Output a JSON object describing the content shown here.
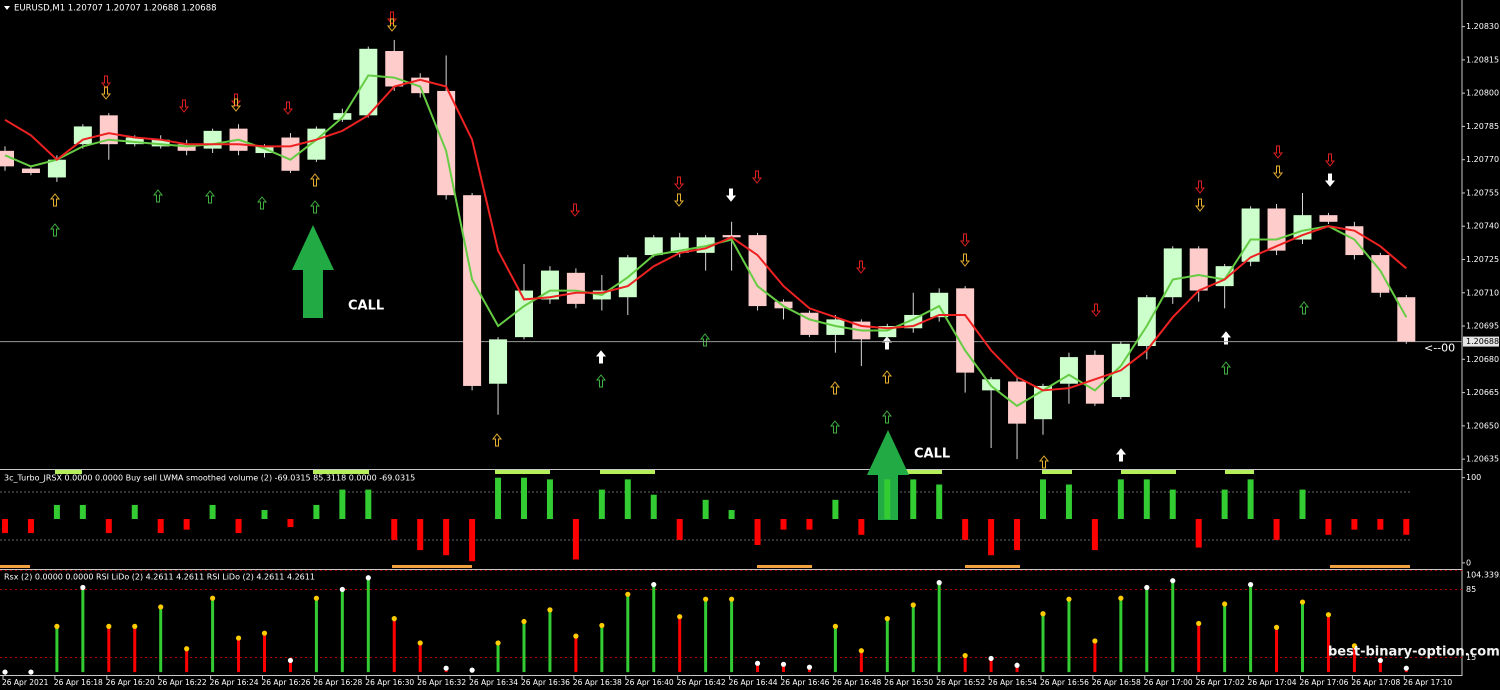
{
  "chart_data": [
    {
      "type": "candlestick",
      "title": "EURUSD,M1  1.20707 1.20707 1.20688 1.20688",
      "categories": [
        "26 Apr 2021",
        null,
        "26 Apr 16:18",
        null,
        "26 Apr 16:20",
        null,
        "26 Apr 16:22",
        null,
        "26 Apr 16:24",
        null,
        "26 Apr 16:26",
        null,
        "26 Apr 16:28",
        null,
        "26 Apr 16:30",
        null,
        "26 Apr 16:32",
        null,
        "26 Apr 16:34",
        null,
        "26 Apr 16:36",
        null,
        "26 Apr 16:38",
        null,
        "26 Apr 16:40",
        null,
        "26 Apr 16:42",
        null,
        "26 Apr 16:44",
        null,
        "26 Apr 16:46",
        null,
        "26 Apr 16:48",
        null,
        "26 Apr 16:50",
        null,
        "26 Apr 16:52",
        null,
        "26 Apr 16:54",
        null,
        "26 Apr 16:56",
        null,
        "26 Apr 16:58",
        null,
        "26 Apr 17:00",
        null,
        "26 Apr 17:02",
        null,
        "26 Apr 17:04",
        null,
        "26 Apr 17:06",
        null,
        "26 Apr 17:08",
        null,
        "26 Apr 17:10"
      ],
      "open": [
        1.20774,
        1.20766,
        1.20762,
        1.20777,
        1.2079,
        1.20777,
        1.20776,
        1.20777,
        1.20775,
        1.20784,
        1.20773,
        1.2078,
        1.2077,
        1.20788,
        1.2079,
        1.20819,
        1.20807,
        1.20801,
        1.20754,
        1.20669,
        1.2069,
        1.20707,
        1.20719,
        1.20707,
        1.20708,
        1.20727,
        1.20728,
        1.20728,
        1.20736,
        1.20736,
        1.20706,
        1.20701,
        1.20691,
        1.20697,
        1.2069,
        1.20694,
        1.20699,
        1.20712,
        1.20666,
        1.2067,
        1.20653,
        1.20669,
        1.20682,
        1.20663,
        1.20686,
        1.20708,
        1.2073,
        1.20713,
        1.20724,
        1.20748,
        1.20734,
        1.20745,
        1.2074,
        1.20727,
        1.20708
      ],
      "high": [
        1.20776,
        1.20767,
        1.20772,
        1.20786,
        1.20791,
        1.20781,
        1.20781,
        1.20779,
        1.20784,
        1.20786,
        1.20777,
        1.20782,
        1.20785,
        1.20793,
        1.20821,
        1.20824,
        1.20809,
        1.20817,
        1.20755,
        1.2069,
        1.20723,
        1.20722,
        1.20721,
        1.20718,
        1.20727,
        1.20736,
        1.20737,
        1.20736,
        1.20742,
        1.20737,
        1.20707,
        1.20702,
        1.207,
        1.20698,
        1.20696,
        1.2071,
        1.20712,
        1.20713,
        1.20672,
        1.20672,
        1.20669,
        1.20683,
        1.20684,
        1.20688,
        1.20709,
        1.20731,
        1.20731,
        1.20723,
        1.20749,
        1.2075,
        1.20755,
        1.20746,
        1.20742,
        1.20728,
        1.20709
      ],
      "low": [
        1.20765,
        1.20763,
        1.2076,
        1.20775,
        1.2077,
        1.20776,
        1.20775,
        1.20772,
        1.20773,
        1.20772,
        1.20771,
        1.20764,
        1.20769,
        1.20787,
        1.20789,
        1.20801,
        1.20798,
        1.20752,
        1.20666,
        1.20655,
        1.20689,
        1.20705,
        1.20703,
        1.20702,
        1.207,
        1.20726,
        1.20726,
        1.2072,
        1.2072,
        1.20702,
        1.20698,
        1.2069,
        1.20683,
        1.20677,
        1.20688,
        1.20692,
        1.20697,
        1.20665,
        1.2064,
        1.20635,
        1.20646,
        1.2066,
        1.20659,
        1.20662,
        1.2068,
        1.20705,
        1.20706,
        1.20703,
        1.20722,
        1.20727,
        1.20732,
        1.20741,
        1.20725,
        1.20708,
        1.20687
      ],
      "close": [
        1.20767,
        1.20764,
        1.2077,
        1.20785,
        1.20777,
        1.2078,
        1.20779,
        1.20774,
        1.20783,
        1.20774,
        1.20776,
        1.20765,
        1.20784,
        1.20791,
        1.2082,
        1.20803,
        1.208,
        1.20754,
        1.20668,
        1.20689,
        1.20711,
        1.2072,
        1.20705,
        1.20711,
        1.20726,
        1.20735,
        1.20735,
        1.20735,
        1.20735,
        1.20704,
        1.20703,
        1.20691,
        1.20698,
        1.20689,
        1.20695,
        1.207,
        1.2071,
        1.20674,
        1.20671,
        1.20651,
        1.20668,
        1.20681,
        1.2066,
        1.20687,
        1.20708,
        1.2073,
        1.20711,
        1.20722,
        1.20748,
        1.20729,
        1.20745,
        1.20742,
        1.20727,
        1.2071,
        1.20688
      ],
      "up_color": "#ccffcc",
      "down_color": "#ffcccc",
      "wick_color": "#d9d9d9",
      "series": [
        {
          "color": "#66cc44",
          "values": [
            1.20772,
            1.20767,
            1.2077,
            1.20776,
            1.20779,
            1.20778,
            1.20777,
            1.20776,
            1.20777,
            1.20779,
            1.20775,
            1.2077,
            1.20779,
            1.20789,
            1.20808,
            1.20807,
            1.20803,
            1.20774,
            1.20716,
            1.20695,
            1.20704,
            1.20711,
            1.20711,
            1.20709,
            1.20717,
            1.20727,
            1.20729,
            1.20731,
            1.20734,
            1.20713,
            1.20704,
            1.20698,
            1.20695,
            1.20693,
            1.20693,
            1.20698,
            1.20704,
            1.20684,
            1.20668,
            1.20659,
            1.20666,
            1.20673,
            1.20666,
            1.20677,
            1.20695,
            1.20716,
            1.20718,
            1.20716,
            1.20734,
            1.20734,
            1.20738,
            1.2074,
            1.20734,
            1.2072,
            1.20699
          ]
        },
        {
          "color": "#ee2222",
          "values": [
            1.20788,
            1.20781,
            1.2077,
            1.20779,
            1.20782,
            1.2078,
            1.20779,
            1.20777,
            1.20777,
            1.20777,
            1.20776,
            1.20776,
            1.20779,
            1.20783,
            1.2079,
            1.20803,
            1.20806,
            1.20803,
            1.20779,
            1.20729,
            1.20707,
            1.20708,
            1.2071,
            1.2071,
            1.20713,
            1.20722,
            1.20728,
            1.2073,
            1.20735,
            1.20727,
            1.20713,
            1.20703,
            1.20699,
            1.20695,
            1.20694,
            1.20695,
            1.207,
            1.207,
            1.20684,
            1.20672,
            1.20666,
            1.20667,
            1.20671,
            1.20675,
            1.20684,
            1.20699,
            1.20711,
            1.20716,
            1.20726,
            1.20731,
            1.20736,
            1.2074,
            1.20738,
            1.20731,
            1.20721
          ]
        }
      ],
      "ylim": [
        1.20631,
        1.20842
      ],
      "yticks": [
        {
          "value": 1.2083,
          "label": "1.20830"
        },
        {
          "value": 1.20815,
          "label": "1.20815"
        },
        {
          "value": 1.208,
          "label": "1.20800"
        },
        {
          "value": 1.20785,
          "label": "1.20785"
        },
        {
          "value": 1.2077,
          "label": "1.20770"
        },
        {
          "value": 1.20755,
          "label": "1.20755"
        },
        {
          "value": 1.2074,
          "label": "1.20740"
        },
        {
          "value": 1.20725,
          "label": "1.20725"
        },
        {
          "value": 1.2071,
          "label": "1.20710"
        },
        {
          "value": 1.20695,
          "label": "1.20695"
        },
        {
          "value": 1.2068,
          "label": "1.20680"
        },
        {
          "value": 1.20665,
          "label": "1.20665"
        },
        {
          "value": 1.2065,
          "label": "1.20650"
        },
        {
          "value": 1.20635,
          "label": "1.20635"
        }
      ],
      "price_line": 1.20688,
      "price_line_label": "1.20688",
      "annotations": [
        "CALL",
        "CALL",
        "<--00"
      ]
    },
    {
      "type": "bar",
      "title": "3c_Turbo_JRSX 0.0000 0.0000  Buy sell LWMA smoothed volume (2) -69.0315 85.3118 0.0000 -69.0315",
      "series": [
        {
          "color": "#33cc33",
          "values": [
            null,
            null,
            68,
            68,
            null,
            68,
            null,
            null,
            68,
            null,
            62,
            null,
            68,
            86,
            86,
            null,
            null,
            null,
            null,
            100,
            100,
            98,
            null,
            86,
            98,
            80,
            null,
            74,
            62,
            null,
            null,
            null,
            74,
            null,
            98,
            98,
            92,
            null,
            null,
            null,
            98,
            92,
            null,
            98,
            98,
            86,
            null,
            86,
            98,
            null,
            86,
            null,
            null,
            null,
            null
          ]
        },
        {
          "color": "#ff0000",
          "values": [
            35,
            35,
            null,
            null,
            35,
            null,
            35,
            39,
            null,
            35,
            null,
            42,
            null,
            null,
            null,
            27,
            15,
            9,
            2,
            null,
            null,
            null,
            4,
            null,
            null,
            null,
            27,
            null,
            null,
            21,
            39,
            39,
            null,
            33,
            null,
            null,
            null,
            27,
            9,
            15,
            null,
            null,
            15,
            null,
            null,
            null,
            18,
            null,
            null,
            27,
            null,
            33,
            39,
            39,
            33
          ]
        }
      ],
      "ylim": [
        -6,
        109
      ],
      "yticks": [
        100,
        0
      ]
    },
    {
      "type": "bar",
      "title": "Rsx (2) 0.0000 0.0000  RSI LiDo (2) 4.2611 4.2611  RSI LiDo (2) 4.2611 4.2611",
      "series": [
        {
          "color": "#33cc33",
          "values": [
            null,
            null,
            47,
            87,
            null,
            null,
            67,
            null,
            76,
            null,
            null,
            null,
            76,
            85,
            97,
            null,
            null,
            null,
            null,
            30,
            52,
            64,
            null,
            48,
            80,
            90,
            null,
            75,
            75,
            null,
            null,
            null,
            47,
            null,
            55,
            69,
            92,
            null,
            null,
            null,
            60,
            75,
            null,
            76,
            87,
            94,
            null,
            70,
            90,
            null,
            72,
            null,
            null,
            null,
            null
          ]
        },
        {
          "color": "#ff0000",
          "values": [
            0,
            0,
            null,
            null,
            47,
            47,
            null,
            24,
            null,
            35,
            40,
            12,
            null,
            null,
            null,
            55,
            30,
            4,
            2,
            null,
            null,
            null,
            37,
            null,
            null,
            null,
            57,
            null,
            null,
            9,
            8,
            5,
            null,
            22,
            null,
            null,
            null,
            17,
            14,
            7,
            null,
            null,
            32,
            null,
            null,
            null,
            50,
            null,
            null,
            46,
            null,
            59,
            27,
            12,
            4
          ]
        }
      ],
      "dot_color": "#ffcc00",
      "extreme_dot_color": "#ffffff",
      "ylim": [
        -3,
        105
      ],
      "yticks": [
        104.3393,
        85,
        15
      ]
    }
  ],
  "watermark": "best-binary-option.com"
}
